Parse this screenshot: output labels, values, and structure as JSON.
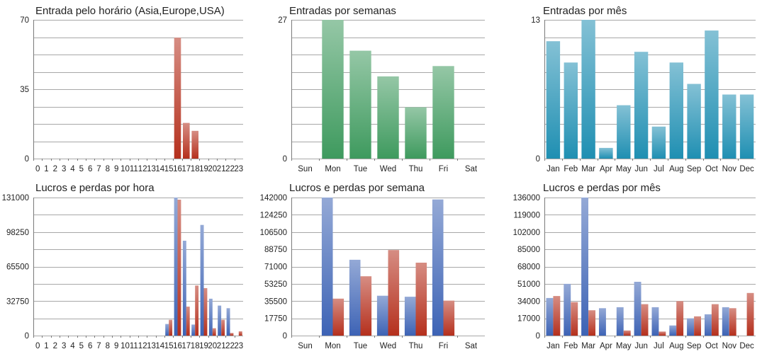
{
  "colors": {
    "red": "#b5301d",
    "green": "#3e9a5e",
    "teal": "#1f8fb2",
    "blue": "#3d63b5",
    "grid": "#a8a8a8",
    "text": "#222222"
  },
  "chart_data": [
    {
      "type": "bar",
      "title": "Entrada pelo horário (Asia,Europe,USA)",
      "categories": [
        "0",
        "1",
        "2",
        "3",
        "4",
        "5",
        "6",
        "7",
        "8",
        "9",
        "10",
        "11",
        "12",
        "13",
        "14",
        "15",
        "16",
        "17",
        "18",
        "19",
        "20",
        "21",
        "22",
        "23"
      ],
      "series": [
        {
          "color": "red",
          "values": [
            0,
            0,
            0,
            0,
            0,
            0,
            0,
            0,
            0,
            0,
            0,
            0,
            0,
            0,
            0,
            0,
            61,
            18,
            14,
            0,
            0,
            0,
            0,
            0
          ]
        }
      ],
      "ylim": [
        0,
        70
      ],
      "yticks": [
        0,
        35,
        70
      ],
      "grid": true
    },
    {
      "type": "bar",
      "title": "Entradas por semanas",
      "categories": [
        "Sun",
        "Mon",
        "Tue",
        "Wed",
        "Thu",
        "Fri",
        "Sat"
      ],
      "series": [
        {
          "color": "green",
          "values": [
            0,
            27,
            21,
            16,
            10,
            18,
            0
          ]
        }
      ],
      "ylim": [
        0,
        27
      ],
      "yticks": [
        0,
        27
      ],
      "grid": true
    },
    {
      "type": "bar",
      "title": "Entradas por mês",
      "categories": [
        "Jan",
        "Feb",
        "Mar",
        "Apr",
        "May",
        "Jun",
        "Jul",
        "Aug",
        "Sep",
        "Oct",
        "Nov",
        "Dec"
      ],
      "series": [
        {
          "color": "teal",
          "values": [
            11,
            9,
            13,
            1,
            5,
            10,
            3,
            9,
            7,
            12,
            6,
            6
          ]
        }
      ],
      "ylim": [
        0,
        13
      ],
      "yticks": [
        0,
        13
      ],
      "grid": true
    },
    {
      "type": "bar",
      "title": "Lucros e perdas por hora",
      "categories": [
        "0",
        "1",
        "2",
        "3",
        "4",
        "5",
        "6",
        "7",
        "8",
        "9",
        "10",
        "11",
        "12",
        "13",
        "14",
        "15",
        "16",
        "17",
        "18",
        "19",
        "20",
        "21",
        "22",
        "23"
      ],
      "series": [
        {
          "color": "blue",
          "values": [
            0,
            0,
            0,
            0,
            0,
            0,
            0,
            0,
            0,
            0,
            0,
            0,
            0,
            0,
            0,
            11000,
            131000,
            90000,
            10500,
            105000,
            35000,
            28500,
            26000,
            0
          ]
        },
        {
          "color": "red",
          "values": [
            0,
            0,
            0,
            0,
            0,
            0,
            0,
            0,
            0,
            0,
            0,
            0,
            0,
            0,
            0,
            15000,
            129000,
            27500,
            47500,
            45000,
            7000,
            15000,
            2500,
            4000
          ]
        }
      ],
      "ylim": [
        0,
        131000
      ],
      "yticks": [
        0,
        32750,
        65500,
        98250,
        131000
      ],
      "grid": true
    },
    {
      "type": "bar",
      "title": "Lucros e perdas por semana",
      "categories": [
        "Sun",
        "Mon",
        "Tue",
        "Wed",
        "Thu",
        "Fri",
        "Sat"
      ],
      "series": [
        {
          "color": "blue",
          "values": [
            0,
            142000,
            78000,
            41000,
            40000,
            140000,
            0
          ]
        },
        {
          "color": "red",
          "values": [
            0,
            38000,
            61000,
            88000,
            75000,
            36000,
            0
          ]
        }
      ],
      "ylim": [
        0,
        142000
      ],
      "yticks": [
        0,
        17750,
        35500,
        53250,
        71000,
        88750,
        106500,
        124250,
        142000
      ],
      "grid": true
    },
    {
      "type": "bar",
      "title": "Lucros e perdas por mês",
      "categories": [
        "Jan",
        "Feb",
        "Mar",
        "Apr",
        "May",
        "Jun",
        "Jul",
        "Aug",
        "Sep",
        "Oct",
        "Nov",
        "Dec"
      ],
      "series": [
        {
          "color": "blue",
          "values": [
            37000,
            51000,
            136000,
            27000,
            28000,
            53000,
            28000,
            10000,
            17000,
            21000,
            28000,
            0
          ]
        },
        {
          "color": "red",
          "values": [
            39000,
            33000,
            25000,
            0,
            5000,
            31000,
            4000,
            34000,
            19000,
            31000,
            27000,
            42000
          ]
        }
      ],
      "ylim": [
        0,
        136000
      ],
      "yticks": [
        0,
        17000,
        34000,
        51000,
        68000,
        85000,
        102000,
        119000,
        136000
      ],
      "grid": true
    }
  ]
}
